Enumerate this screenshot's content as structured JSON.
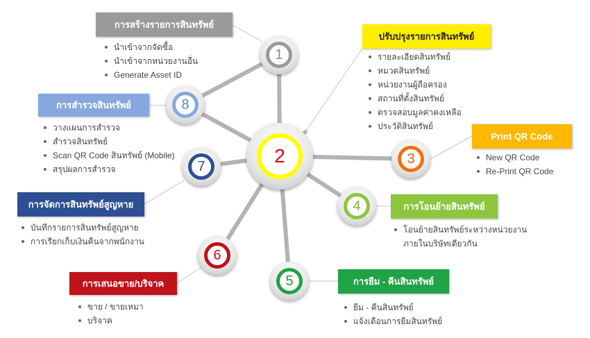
{
  "center": {
    "number": "2",
    "ring_color": "#ffff00",
    "number_color": "#d0021b"
  },
  "branches": [
    {
      "number": "1",
      "title": "การสร้างรายการสินทรัพย์",
      "color": "#9a9a9a",
      "ring_color": "#9a9a9a",
      "number_color": "#8a8a8a",
      "items": [
        "นำเข้าจากจัดซื้อ",
        "นำเข้าจากหน่วยงานอื่น",
        "Generate Asset ID"
      ]
    },
    {
      "number": "",
      "title": "ปรับปรุงรายการสินทรัพย์",
      "color": "#ffee00",
      "title_color": "#222222",
      "items": [
        "รายละเอียดสินทรัพย์",
        "หมวดสินทรัพย์",
        "หน่วยงานผู้ถือครอง",
        "สถานที่ตั้งสินทรัพย์",
        "ตรวจสอบมูลค่าคงเหลือ",
        "ประวัติสินทรัพย์"
      ]
    },
    {
      "number": "3",
      "title": "Print QR Code",
      "color": "#ffb800",
      "ring_color": "#f07010",
      "number_color": "#e85d0a",
      "items": [
        "New QR Code",
        "Re-Print QR Code"
      ]
    },
    {
      "number": "4",
      "title": "การโอนย้ายสินทรัพย์",
      "color": "#8cc63f",
      "ring_color": "#8cc63f",
      "number_color": "#7ab52f",
      "items": [
        "โอนย้ายสินทรัพย์ระหว่างหน่วยงาน",
        "ภายในบริษัทเดียวกัน"
      ]
    },
    {
      "number": "5",
      "title": "การยืม - คืนสินทรัพย์",
      "color": "#1fa346",
      "ring_color": "#1fa346",
      "number_color": "#1f9a43",
      "items": [
        "ยืม - คืนสินทรัพย์",
        "แจ้งเตือนการยืมสินทรัพย์"
      ]
    },
    {
      "number": "6",
      "title": "การเสนอขาย/บริจาค",
      "color": "#c0121a",
      "ring_color": "#c0121a",
      "number_color": "#c0121a",
      "items": [
        "ขาย / ขายเหมา",
        "บริจาค"
      ]
    },
    {
      "number": "7",
      "title": "การจัดการสินทรัพย์สูญหาย",
      "color": "#2e4f93",
      "ring_color": "#2e4f93",
      "number_color": "#2e4f93",
      "items": [
        "บันทึกรายการสินทรัพย์สูญหาย",
        "การเรียกเก็บเงินคืนจากพนักงาน"
      ]
    },
    {
      "number": "8",
      "title": "การสำรวจสินทรัพย์",
      "color": "#86a8de",
      "ring_color": "#86a8de",
      "number_color": "#5b84cc",
      "items": [
        "วางแผนการสำรวจ",
        "สำรวจสินทรัพย์",
        "Scan QR Code สินทรัพย์ (Mobile)",
        "สรุปผลการสำรวจ"
      ]
    }
  ]
}
